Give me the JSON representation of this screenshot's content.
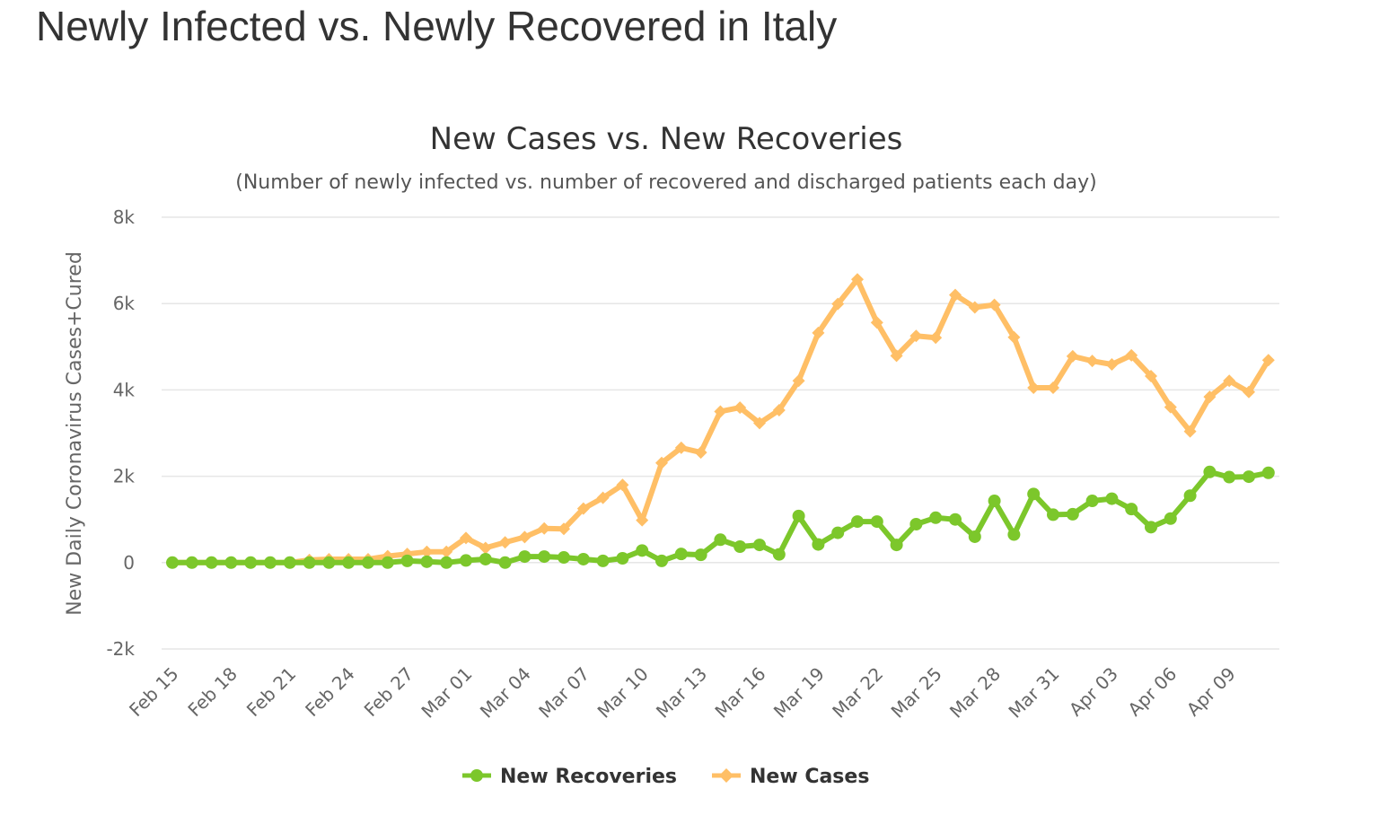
{
  "page_title": "Newly Infected vs. Newly Recovered in Italy",
  "chart_data": {
    "type": "line",
    "title": "New Cases vs. New Recoveries",
    "subtitle": "(Number of newly infected vs. number of recovered and discharged patients each day)",
    "ylabel": "New Daily Coronavirus Cases+Cured",
    "xlabel": "",
    "ylim": [
      -2000,
      8000
    ],
    "yticks": [
      -2000,
      0,
      2000,
      4000,
      6000,
      8000
    ],
    "ytick_labels": [
      "-2k",
      "0",
      "2k",
      "4k",
      "6k",
      "8k"
    ],
    "x": [
      "Feb 15",
      "Feb 16",
      "Feb 17",
      "Feb 18",
      "Feb 19",
      "Feb 20",
      "Feb 21",
      "Feb 22",
      "Feb 23",
      "Feb 24",
      "Feb 25",
      "Feb 26",
      "Feb 27",
      "Feb 28",
      "Feb 29",
      "Mar 01",
      "Mar 02",
      "Mar 03",
      "Mar 04",
      "Mar 05",
      "Mar 06",
      "Mar 07",
      "Mar 08",
      "Mar 09",
      "Mar 10",
      "Mar 11",
      "Mar 12",
      "Mar 13",
      "Mar 14",
      "Mar 15",
      "Mar 16",
      "Mar 17",
      "Mar 18",
      "Mar 19",
      "Mar 20",
      "Mar 21",
      "Mar 22",
      "Mar 23",
      "Mar 24",
      "Mar 25",
      "Mar 26",
      "Mar 27",
      "Mar 28",
      "Mar 29",
      "Mar 30",
      "Mar 31",
      "Apr 01",
      "Apr 02",
      "Apr 03",
      "Apr 04",
      "Apr 05",
      "Apr 06",
      "Apr 07",
      "Apr 08",
      "Apr 09",
      "Apr 10",
      "Apr 11"
    ],
    "x_tick_labels": [
      "Feb 15",
      "Feb 18",
      "Feb 21",
      "Feb 24",
      "Feb 27",
      "Mar 01",
      "Mar 04",
      "Mar 07",
      "Mar 10",
      "Mar 13",
      "Mar 16",
      "Mar 19",
      "Mar 22",
      "Mar 25",
      "Mar 28",
      "Mar 31",
      "Apr 03",
      "Apr 06",
      "Apr 09"
    ],
    "grid": true,
    "legend": "bottom-center",
    "series": [
      {
        "name": "New Recoveries",
        "color": "#7cc72b",
        "values": [
          0,
          0,
          0,
          0,
          0,
          0,
          0,
          0,
          0,
          0,
          0,
          0,
          40,
          20,
          0,
          50,
          80,
          0,
          140,
          140,
          120,
          80,
          40,
          100,
          280,
          40,
          200,
          180,
          530,
          370,
          410,
          190,
          1080,
          420,
          690,
          950,
          950,
          410,
          890,
          1040,
          1000,
          600,
          1430,
          650,
          1590,
          1110,
          1120,
          1430,
          1480,
          1240,
          820,
          1020,
          1550,
          2100,
          1980,
          1990,
          2080
        ]
      },
      {
        "name": "New Cases",
        "color": "#ffbf66",
        "values": [
          0,
          0,
          0,
          0,
          0,
          0,
          0,
          60,
          80,
          80,
          80,
          150,
          200,
          250,
          250,
          570,
          340,
          470,
          590,
          790,
          780,
          1250,
          1500,
          1800,
          980,
          2310,
          2660,
          2550,
          3500,
          3590,
          3230,
          3530,
          4210,
          5320,
          5990,
          6560,
          5560,
          4790,
          5250,
          5210,
          6200,
          5910,
          5970,
          5220,
          4050,
          4050,
          4780,
          4670,
          4590,
          4800,
          4320,
          3600,
          3040,
          3840,
          4210,
          3950,
          4690
        ]
      }
    ]
  }
}
